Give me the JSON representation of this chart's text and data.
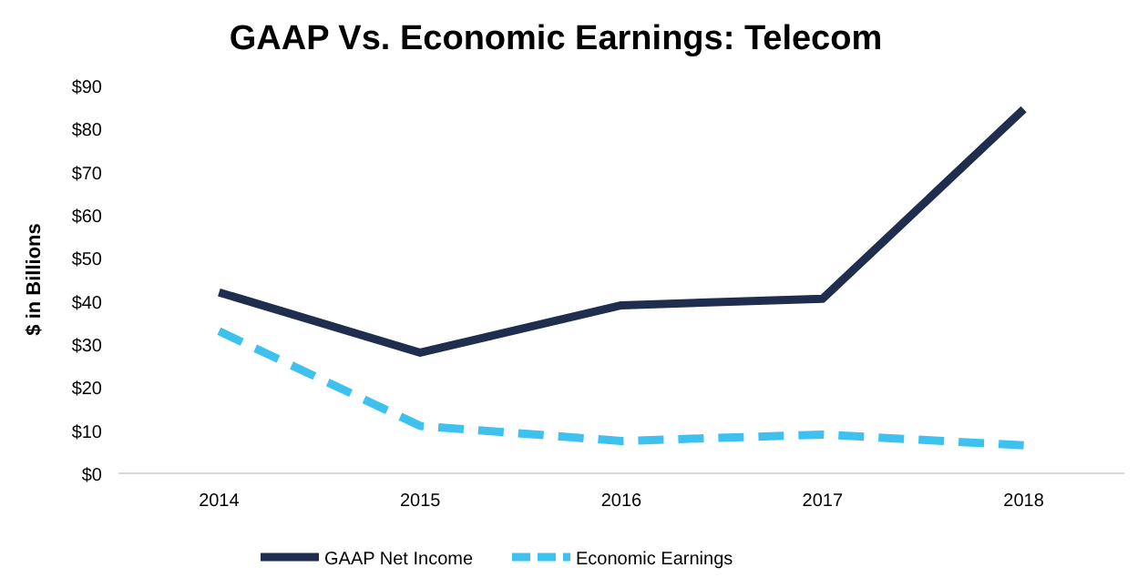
{
  "chart_data": {
    "type": "line",
    "title": "GAAP Vs. Economic Earnings: Telecom",
    "ylabel": "$ in Billions",
    "categories": [
      "2014",
      "2015",
      "2016",
      "2017",
      "2018"
    ],
    "series": [
      {
        "name": "GAAP Net Income",
        "color": "#1f2e4e",
        "line_style": "solid",
        "values": [
          42,
          28,
          39,
          40.5,
          84.5
        ]
      },
      {
        "name": "Economic Earnings",
        "color": "#3fc1ef",
        "line_style": "dashed",
        "values": [
          33,
          11,
          7.5,
          9,
          6.5
        ]
      }
    ],
    "ylim": [
      0,
      90
    ],
    "yticks": [
      {
        "value": 0,
        "label": "$0"
      },
      {
        "value": 10,
        "label": "$10"
      },
      {
        "value": 20,
        "label": "$20"
      },
      {
        "value": 30,
        "label": "$30"
      },
      {
        "value": 40,
        "label": "$40"
      },
      {
        "value": 50,
        "label": "$50"
      },
      {
        "value": 60,
        "label": "$60"
      },
      {
        "value": 70,
        "label": "$70"
      },
      {
        "value": 80,
        "label": "$80"
      },
      {
        "value": 90,
        "label": "$90"
      }
    ],
    "grid": false,
    "legend": "bottom",
    "marker": "none"
  }
}
